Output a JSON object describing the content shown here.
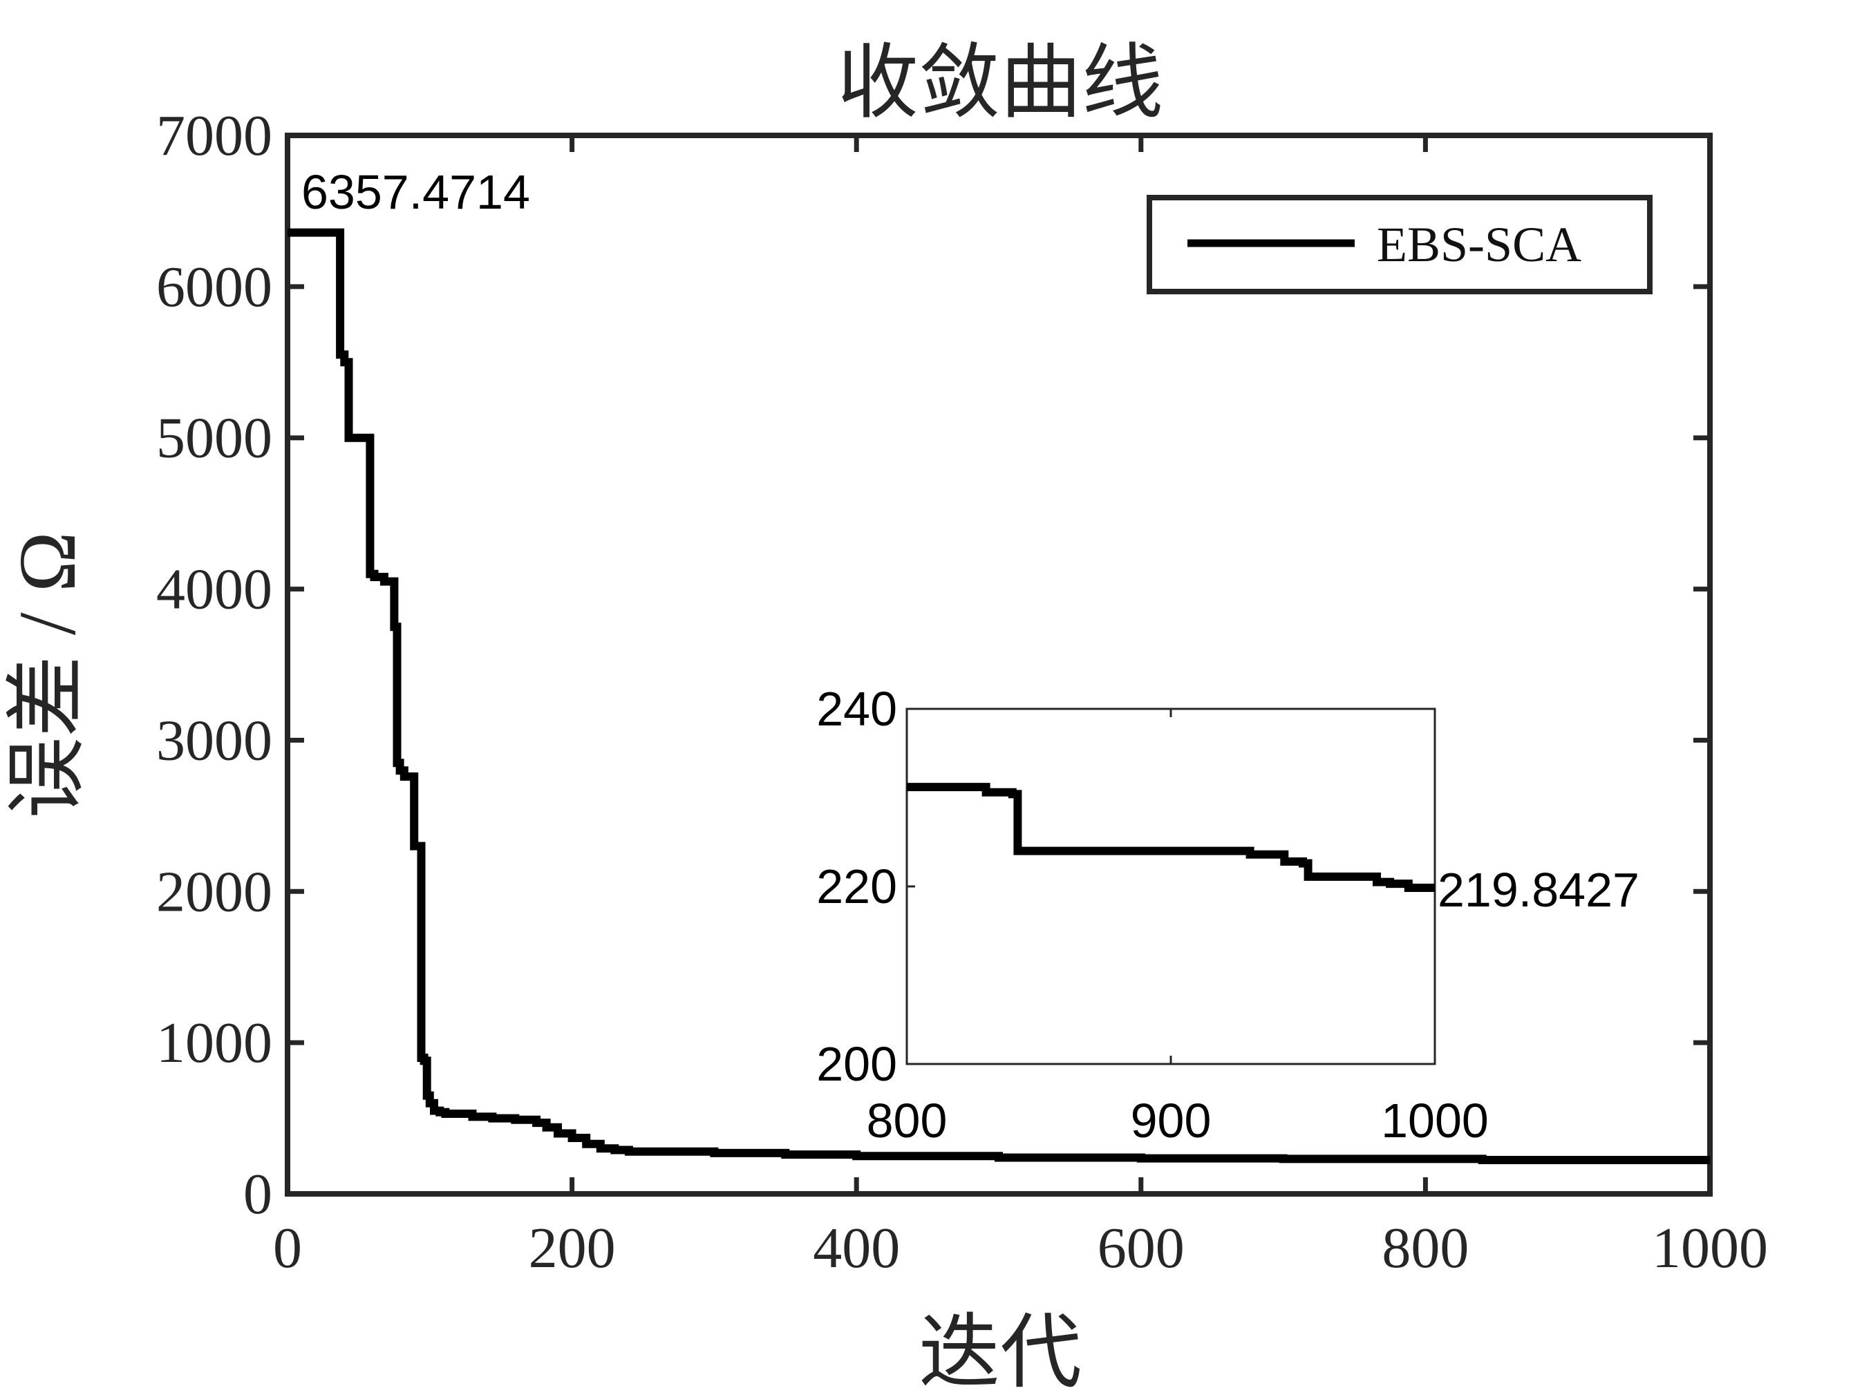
{
  "chart_data": {
    "type": "line",
    "title": "收敛曲线",
    "xlabel": "迭代",
    "ylabel": "误差 / Ω",
    "xlim": [
      0,
      1000
    ],
    "ylim": [
      0,
      7000
    ],
    "xticks": [
      0,
      200,
      400,
      600,
      800,
      1000
    ],
    "yticks": [
      0,
      1000,
      2000,
      3000,
      4000,
      5000,
      6000,
      7000
    ],
    "xtick_labels": [
      "0",
      "200",
      "400",
      "600",
      "800",
      "1000"
    ],
    "ytick_labels": [
      "0",
      "1000",
      "2000",
      "3000",
      "4000",
      "5000",
      "6000",
      "7000"
    ],
    "grid": false,
    "legend": {
      "placement": "top-right",
      "entries": [
        "EBS-SCA"
      ]
    },
    "series": [
      {
        "name": "EBS-SCA",
        "color": "#000000",
        "x": [
          0,
          37,
          37,
          40,
          40,
          43,
          43,
          58,
          58,
          61,
          61,
          68,
          68,
          75,
          75,
          77,
          77,
          79,
          79,
          82,
          82,
          89,
          89,
          94,
          94,
          96,
          96,
          98,
          98,
          100,
          100,
          103,
          103,
          107,
          107,
          111,
          111,
          130,
          130,
          144,
          144,
          160,
          160,
          175,
          175,
          182,
          182,
          190,
          190,
          200,
          200,
          210,
          210,
          220,
          220,
          230,
          230,
          240,
          240,
          300,
          300,
          350,
          350,
          400,
          400,
          500,
          500,
          600,
          600,
          700,
          700,
          840,
          840,
          1000
        ],
        "y": [
          6357.4714,
          6357.4714,
          5550,
          5550,
          5500,
          5500,
          5000,
          5000,
          4100,
          4100,
          4080,
          4080,
          4050,
          4050,
          3750,
          3750,
          2850,
          2850,
          2800,
          2800,
          2760,
          2760,
          2300,
          2300,
          900,
          900,
          880,
          880,
          650,
          650,
          600,
          600,
          550,
          550,
          540,
          540,
          530,
          530,
          510,
          510,
          500,
          500,
          490,
          490,
          470,
          470,
          440,
          440,
          400,
          400,
          370,
          370,
          330,
          330,
          300,
          300,
          290,
          290,
          280,
          280,
          270,
          270,
          260,
          260,
          250,
          250,
          240,
          240,
          235,
          235,
          231,
          231,
          224,
          224
        ]
      }
    ],
    "annotations": [
      {
        "text": "6357.4714",
        "x": 0,
        "y": 6357.4714
      },
      {
        "text": "219.8427",
        "x": 1000,
        "y": 219.8427
      }
    ],
    "inset": {
      "type": "line",
      "xlim": [
        800,
        1000
      ],
      "ylim": [
        200,
        240
      ],
      "xticks": [
        800,
        900,
        1000
      ],
      "yticks": [
        200,
        220,
        240
      ],
      "xtick_labels": [
        "800",
        "900",
        "1000"
      ],
      "ytick_labels": [
        "200",
        "220",
        "240"
      ],
      "series": [
        {
          "name": "EBS-SCA",
          "color": "#000000",
          "x": [
            800,
            830,
            830,
            840,
            840,
            842,
            842,
            930,
            930,
            943,
            943,
            950,
            950,
            952,
            952,
            978,
            978,
            983,
            983,
            990,
            990,
            1000
          ],
          "y": [
            231.2,
            231.2,
            230.6,
            230.6,
            230.4,
            230.4,
            224.0,
            224.0,
            223.6,
            223.6,
            222.8,
            222.8,
            222.6,
            222.6,
            221.1,
            221.1,
            220.5,
            220.5,
            220.3,
            220.3,
            219.8427,
            219.8427
          ]
        }
      ]
    }
  }
}
